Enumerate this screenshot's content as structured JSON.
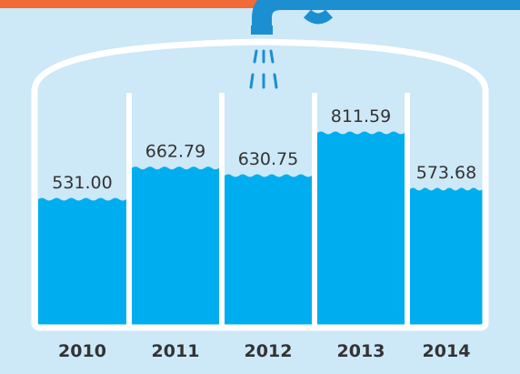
{
  "chart_data": {
    "type": "bar",
    "categories": [
      "2010",
      "2011",
      "2012",
      "2013",
      "2014"
    ],
    "values": [
      531.0,
      662.79,
      630.75,
      811.59,
      573.68
    ],
    "value_labels": [
      "531.00",
      "662.79",
      "630.75",
      "811.59",
      "573.68"
    ],
    "color": "#00aeef"
  }
}
